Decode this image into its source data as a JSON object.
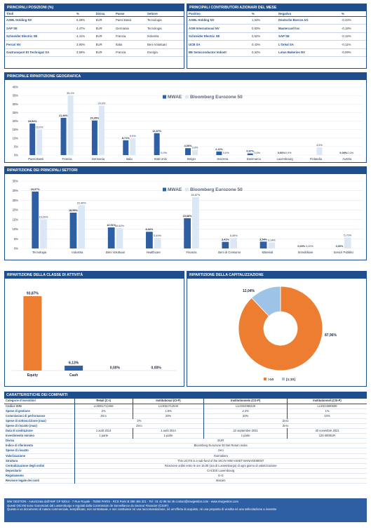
{
  "positions": {
    "title": "PRINCIPALI POSIZIONI (%)",
    "headers": [
      "Titoli",
      "%",
      "Divisa",
      "Paese",
      "Settore"
    ],
    "rows": [
      [
        "ASML Holding NV",
        "6,28%",
        "EUR",
        "Paesi Bassi",
        "Tecnologia"
      ],
      [
        "SAP SE",
        "4,47%",
        "EUR",
        "Germania",
        "Tecnologia"
      ],
      [
        "Schneider Electric SE",
        "4,41%",
        "EUR",
        "Francia",
        "Industria"
      ],
      [
        "Ferrari NV",
        "3,90%",
        "EUR",
        "Italia",
        "Beni Voluttuari"
      ],
      [
        "Gaztransport Et Technigaz SA",
        "3,59%",
        "EUR",
        "Francia",
        "Energia"
      ]
    ]
  },
  "contributors": {
    "title": "PRINCIPALI CONTRIBUTORI AZIONARI  DEL MESE",
    "headers": [
      "Positivo",
      "%",
      "Negativo",
      "%"
    ],
    "rows": [
      [
        "ASML Holding NV",
        "1,63%",
        "Deutsche Boerse AG",
        "-0,43%"
      ],
      [
        "ASM International NV",
        "0,83%",
        "Mastercard Inc",
        "-0,18%"
      ],
      [
        "Schneider Electric SE",
        "0,52%",
        "SAP SE",
        "-0,12%"
      ],
      [
        "UCB SA",
        "0,43%",
        "L'Oréal SA",
        "-0,11%"
      ],
      [
        "BE Semiconductor Industr",
        "0,34%",
        "Lotus Bakeries NV",
        "-0,09%"
      ]
    ]
  },
  "geo": {
    "title": "PRINCIPALE RIPARTIZIONE GEOGRAFICA",
    "legend": [
      "MWAE",
      "Bloomberg Eurozone 50"
    ]
  },
  "sect": {
    "title": "RIPARTIZIONE DEI PRINCIPALI SETTORI",
    "legend": [
      "MWAE",
      "Bloomberg Eurozone 50"
    ]
  },
  "asset": {
    "title": "RIPARTIZIONE DELLA CLASSE DI ATTIVITÀ"
  },
  "cap": {
    "title": "RIPARTIZIONE DELLA CAPITALIZZAZIONE"
  },
  "colors": {
    "navy": "#1e4f8c",
    "fund": "#2f5fa3",
    "bench": "#dbe7f5",
    "orange": "#ed7d31",
    "light": "#9dc3e6"
  },
  "chart_data": [
    {
      "type": "bar",
      "categories": [
        "Paesi Bassi",
        "Francia",
        "Germania",
        "Italia",
        "Stati Uniti",
        "Belgio",
        "Svizzera",
        "Danimarca",
        "Luxembourg",
        "Finlandia",
        "Austria"
      ],
      "series": [
        {
          "name": "MWAE",
          "values": [
            18.54,
            21.9,
            20.35,
            8.71,
            12.87,
            4.06,
            2.11,
            0.97,
            0.0,
            0.0,
            0.0
          ],
          "labels": [
            "18,54%",
            "21,90%",
            "20,35%",
            "8,71%",
            "12,87%",
            "4,06%",
            "2,11%",
            "0,97%",
            "0,00%",
            "",
            "0,00%"
          ]
        },
        {
          "name": "Bloomberg Eurozone 50",
          "values": [
            15.0,
            35.1,
            29.0,
            9.9,
            0.0,
            3.0,
            0.0,
            0.0,
            0.0,
            4.5,
            0.0
          ],
          "labels": [
            "15,0%",
            "35,1%",
            "29,0%",
            "9,9%",
            "0,0%",
            "3,0%",
            "0,0%",
            "0,0%",
            "0,0%",
            "4,5%",
            "0,0%"
          ]
        }
      ],
      "ylim": [
        0,
        40
      ],
      "yticks": [
        "0%",
        "5%",
        "10%",
        "15%",
        "20%",
        "25%",
        "30%",
        "35%",
        "40%"
      ]
    },
    {
      "type": "bar",
      "categories": [
        "Tecnologia",
        "Industria",
        "Beni Voluttuari",
        "Healthcare",
        "Finanza",
        "Beni di Consumo",
        "Materiali",
        "Immobiliare",
        "Servizi Pubblici"
      ],
      "series": [
        {
          "name": "MWAE",
          "values": [
            29.57,
            18.59,
            10.91,
            8.66,
            15.68,
            3.41,
            3.54,
            0.0,
            0.0
          ],
          "labels": [
            "29,57%",
            "18,59%",
            "10,91%",
            "8,66%",
            "15,68%",
            "3,41%",
            "3,54%",
            "0,00%",
            "0,00%"
          ]
        },
        {
          "name": "Bloomberg Eurozone 50",
          "values": [
            15.2,
            22.49,
            10.62,
            5.49,
            26.67,
            5.49,
            3.14,
            0.0,
            5.7
          ],
          "labels": [
            "15,20%",
            "22,49%",
            "10,62%",
            "5,49%",
            "26,67%",
            "5,49%",
            "3,14%",
            "0,00%",
            "5,70%"
          ]
        }
      ],
      "ylim": [
        0,
        35
      ],
      "yticks": [
        "0%",
        "5%",
        "10%",
        "15%",
        "20%",
        "25%",
        "30%",
        "35%"
      ]
    },
    {
      "type": "bar",
      "categories": [
        "Equity",
        "Cash",
        "",
        ""
      ],
      "values": [
        93.87,
        6.13,
        0.0,
        0.0
      ],
      "labels": [
        "93,87%",
        "6,13%",
        "0,00%",
        "0,00%"
      ],
      "ylim": [
        0,
        100
      ]
    },
    {
      "type": "pie",
      "categories": [
        ">10",
        "[1;10]"
      ],
      "values": [
        87.96,
        12.04
      ],
      "labels": [
        "87,96%",
        "12,04%"
      ]
    }
  ],
  "characteristics": {
    "title": "CARATTERISTICHE DEI COMPARTI",
    "columns": [
      "Retail (C-I)",
      "Institutional (CI-P)",
      "Institutionnels (CG-P)",
      "Institutionnel (CSI-P)"
    ],
    "labels": {
      "categories": "Categorie d'investitori",
      "isin": "Codice ISIN",
      "mgmt": "Spese di gestione",
      "perf": "Commissioni di performance",
      "subscr": "Spese di sottoscrizione (max)",
      "redemp": "Spese di riscatto (max)",
      "date": "Data di costituzione",
      "min": "Investimento minimo",
      "currency": "Divisa",
      "index": "Indice di riferimento",
      "redemption_fee": "Spese di riscatto",
      "valuation": "Valorizzazione",
      "structure": "Struttura",
      "centralization": "Centralizzazione degli ordini",
      "depositary": "Depositario",
      "regulation": "Regolamento",
      "auditor": "Revisore legale dei conti"
    },
    "isin": [
      "LU3061712466",
      "LU3061712540",
      "LU2334080426",
      "LU2334080699"
    ],
    "mgmt": [
      "2%",
      "1.5%",
      "2.2%",
      "1%"
    ],
    "perf": [
      "Zero",
      "20%",
      "20%",
      "10%"
    ],
    "subscr": [
      "2%",
      "Zero"
    ],
    "redemp": [
      "Zero",
      "Zero"
    ],
    "date": [
      "1 août 2014",
      "1 août 2014",
      "22 septembre 2021",
      "30 novembre 2021"
    ],
    "min": [
      "1 parte",
      "1 parte",
      "1 parte",
      "125 000EUR"
    ],
    "currency": "EUR",
    "index": "Bloomberg Eurozone 50 Net Return Index",
    "redemption_fee": "zero",
    "valuation": "Giornaliera",
    "structure": "This UCITS is a sub-fund of the SICAV MW ASSET MANAGEMENT",
    "centralization": "Ricezione ordini entro le ore 15.00 (ora di Lussemburgo) di ogni giorno di valorizzazione",
    "depositary": "CACEIS Luxembourg",
    "regulation": "G+2",
    "auditor": "Mazars"
  },
  "footer": {
    "line1": "MW GESTION - Autorizzata dall'AMF GP 92014 - 7 Rue Royale - 75008 PARIS - RCS Paris B 388 455 221 - Tel : 01 42 86 54 45 contact@mwgestion.com - www.mwgestion.com",
    "line2": "Questi OICVM sono riconosciuti dal Lussemburgo e regolati dalla Commission de Surveillance du Secteur Financier (CSSF)",
    "line3": "Questo è un documento di natura commerciale, semplificato, non contrattuale, e non costituisce né una raccomandazione, né un'offerta di acquisto, né una proposta di vendita né una sollecitazione a investire"
  }
}
